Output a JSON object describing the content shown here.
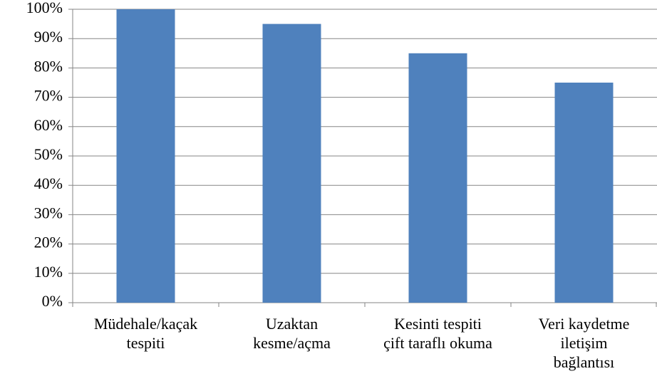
{
  "chart_data": {
    "type": "bar",
    "categories": [
      "Müdehale/kaçak\ntespiti",
      "Uzaktan\nkesme/açma",
      "Kesinti tespiti\nçift taraflı okuma",
      "Veri kaydetme\niletişim\nbağlantısı"
    ],
    "values": [
      100,
      95,
      85,
      75
    ],
    "color": "#4f81bd",
    "ylim": [
      0,
      100
    ],
    "yticks": [
      {
        "value": 0,
        "label": "0%"
      },
      {
        "value": 10,
        "label": "10%"
      },
      {
        "value": 20,
        "label": "20%"
      },
      {
        "value": 30,
        "label": "30%"
      },
      {
        "value": 40,
        "label": "40%"
      },
      {
        "value": 50,
        "label": "50%"
      },
      {
        "value": 60,
        "label": "60%"
      },
      {
        "value": 70,
        "label": "70%"
      },
      {
        "value": 80,
        "label": "80%"
      },
      {
        "value": 90,
        "label": "90%"
      },
      {
        "value": 100,
        "label": "100%"
      }
    ],
    "grid": true
  }
}
